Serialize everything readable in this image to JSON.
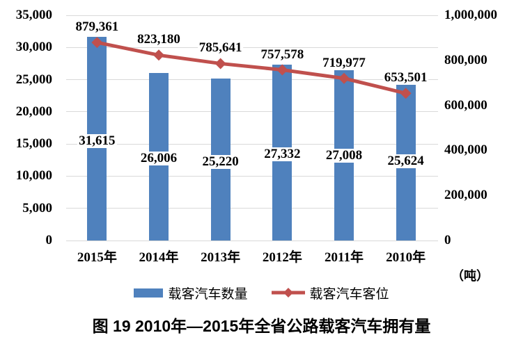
{
  "title": {
    "text": "图 19  2010年—2015年全省公路载客汽车拥有量"
  },
  "legend": {
    "items": [
      {
        "label": "载客汽车数量",
        "marker": "bar-swatch",
        "color": "#4f81bd"
      },
      {
        "label": "载客汽车客位",
        "marker": "line-diamond",
        "color": "#c0504d"
      }
    ]
  },
  "colors": {
    "bar": "#4f81bd",
    "line": "#c0504d",
    "gridline": "#d9d9d9",
    "text": "#000000",
    "background": "#ffffff"
  },
  "chart_data": {
    "type": "bar",
    "subtype": "bar-and-line-combo",
    "title": "图 19  2010年—2015年全省公路载客汽车拥有量",
    "categories": [
      "2015年",
      "2014年",
      "2013年",
      "2012年",
      "2011年",
      "2010年"
    ],
    "series": [
      {
        "name": "载客汽车数量",
        "type": "bar",
        "axis": "left",
        "color": "#4f81bd",
        "values": [
          31615,
          26006,
          25220,
          27332,
          27008,
          25624
        ],
        "data_labels": [
          "31,615",
          "26,006",
          "25,220",
          "27,332",
          "27,008",
          "25,624"
        ]
      },
      {
        "name": "载客汽车客位",
        "type": "line",
        "axis": "right",
        "marker": "diamond",
        "color": "#c0504d",
        "values": [
          879361,
          823180,
          785641,
          757578,
          719977,
          653501
        ],
        "data_labels": [
          "879,361",
          "823,180",
          "785,641",
          "757,578",
          "719,977",
          "653,501"
        ]
      }
    ],
    "left_axis": {
      "min": 0,
      "max": 35000,
      "step": 5000,
      "tick_labels": [
        "35,000",
        "30,000",
        "25,000",
        "20,000",
        "15,000",
        "10,000",
        "5,000",
        "0"
      ]
    },
    "right_axis": {
      "min": 0,
      "max": 1000000,
      "step": 200000,
      "tick_labels": [
        "1,000,000",
        "800,000",
        "600,000",
        "400,000",
        "200,000",
        "0"
      ],
      "unit_label": "（吨）"
    },
    "grid": true,
    "legend_position": "bottom"
  }
}
